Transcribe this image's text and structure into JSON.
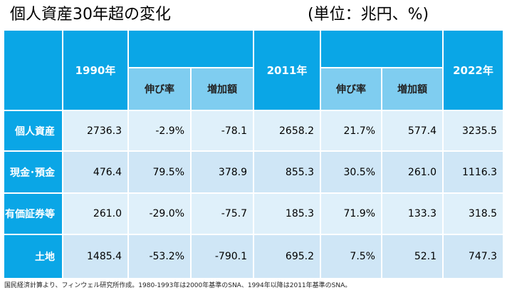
{
  "title": "個人資産30年超の変化",
  "unit": "(単位：兆円、%)",
  "headers": {
    "y1990": "1990年",
    "y2011": "2011年",
    "y2022": "2022年",
    "growth1": "伸び率",
    "increase1": "増加額",
    "growth2": "伸び率",
    "increase2": "増加額"
  },
  "rows": [
    {
      "label": "個人資産",
      "v1990": "2736.3",
      "g1": "-2.9%",
      "i1": "-78.1",
      "v2011": "2658.2",
      "g2": "21.7%",
      "i2": "577.4",
      "v2022": "3235.5"
    },
    {
      "label": "現金･預金",
      "v1990": "476.4",
      "g1": "79.5%",
      "i1": "378.9",
      "v2011": "855.3",
      "g2": "30.5%",
      "i2": "261.0",
      "v2022": "1116.3"
    },
    {
      "label": "有価証券等",
      "v1990": "261.0",
      "g1": "-29.0%",
      "i1": "-75.7",
      "v2011": "185.3",
      "g2": "71.9%",
      "i2": "133.3",
      "v2022": "318.5"
    },
    {
      "label": "土地",
      "v1990": "1485.4",
      "g1": "-53.2%",
      "i1": "-790.1",
      "v2011": "695.2",
      "g2": "7.5%",
      "i2": "52.1",
      "v2022": "747.3"
    }
  ],
  "footnote": "国民経済計算より、フィンウェル研究所作成。1980-1993年は2000年基準のSNA、1994年以降は2011年基準のSNA。",
  "colors": {
    "header": "#0aa6e6",
    "subheader": "#7fcdf0",
    "row_light": "#dff0fa",
    "row_mid": "#cfe6f6"
  }
}
